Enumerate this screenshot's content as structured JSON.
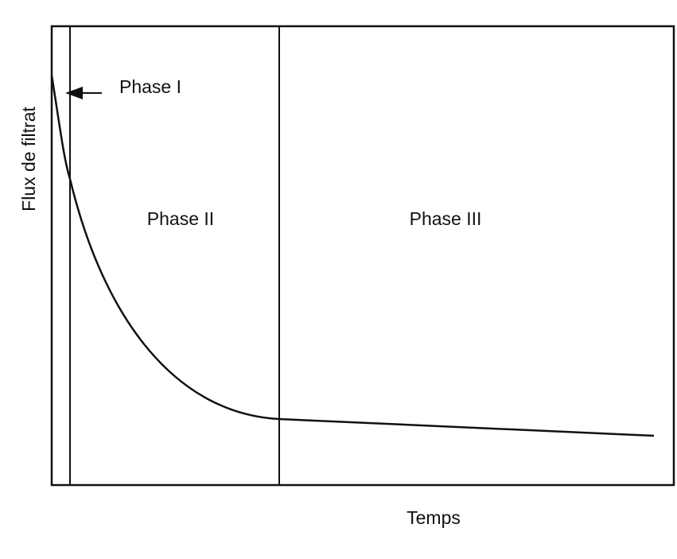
{
  "axes": {
    "y_label": "Flux de filtrat",
    "x_label": "Temps"
  },
  "phases": [
    {
      "label": "Phase I"
    },
    {
      "label": "Phase II"
    },
    {
      "label": "Phase III"
    }
  ]
}
